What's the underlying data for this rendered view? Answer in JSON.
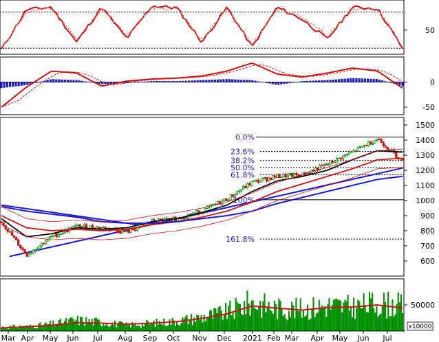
{
  "chart_data": [
    {
      "type": "line",
      "panel": "stochastic",
      "ylim": [
        10,
        100
      ],
      "y_ticks": [
        50
      ],
      "guide_levels": [
        80,
        20
      ],
      "x": [
        "Mar",
        "Apr",
        "May",
        "Jun",
        "Jul",
        "Aug",
        "Sep",
        "Oct",
        "Nov",
        "Dec",
        "2021",
        "Feb",
        "Mar",
        "Apr",
        "May",
        "Jun",
        "Jul"
      ],
      "series": [
        {
          "color": "#d01010",
          "values": [
            18,
            84,
            88,
            30,
            88,
            36,
            90,
            87,
            30,
            88,
            22,
            88,
            68,
            35,
            88,
            86,
            20
          ]
        },
        {
          "color": "#e07070",
          "values": [
            20,
            80,
            86,
            34,
            86,
            40,
            88,
            85,
            34,
            86,
            26,
            86,
            72,
            40,
            86,
            85,
            24
          ]
        }
      ]
    },
    {
      "type": "line",
      "panel": "macd",
      "ylim": [
        -65,
        50
      ],
      "y_ticks": [
        0,
        -50
      ],
      "x": [
        "Mar",
        "Apr",
        "May",
        "Jun",
        "Jul",
        "Aug",
        "Sep",
        "Oct",
        "Nov",
        "Dec",
        "2021",
        "Feb",
        "Mar",
        "Apr",
        "May",
        "Jun",
        "Jul"
      ],
      "series": [
        {
          "color": "#d01010",
          "values": [
            -50,
            -10,
            22,
            18,
            -8,
            2,
            6,
            8,
            12,
            22,
            38,
            16,
            10,
            18,
            28,
            22,
            -12
          ]
        },
        {
          "color": "#1a1ad6",
          "values": [
            -12,
            -6,
            6,
            4,
            -4,
            -2,
            2,
            2,
            4,
            6,
            4,
            -6,
            2,
            4,
            8,
            6,
            -8
          ]
        }
      ]
    },
    {
      "type": "line",
      "panel": "price",
      "ylim": [
        500,
        1550
      ],
      "y_ticks": [
        1500,
        1400,
        1300,
        1200,
        1100,
        1000,
        900,
        800,
        700,
        600
      ],
      "x": [
        "Mar",
        "Apr",
        "May",
        "Jun",
        "Jul",
        "Aug",
        "Sep",
        "Oct",
        "Nov",
        "Dec",
        "2021",
        "Feb",
        "Mar",
        "Apr",
        "May",
        "Jun",
        "Jul"
      ],
      "series": [
        {
          "color": "#009000",
          "values": [
            860,
            640,
            760,
            830,
            820,
            790,
            860,
            880,
            930,
            1010,
            1120,
            1160,
            1170,
            1240,
            1320,
            1410,
            1260
          ]
        },
        {
          "color": "#000000",
          "values": [
            880,
            760,
            780,
            820,
            810,
            820,
            860,
            880,
            920,
            970,
            1060,
            1130,
            1160,
            1200,
            1270,
            1330,
            1320
          ]
        },
        {
          "color": "#d01010",
          "values": [
            900,
            820,
            800,
            810,
            800,
            810,
            840,
            860,
            890,
            930,
            990,
            1060,
            1110,
            1160,
            1210,
            1270,
            1280
          ]
        },
        {
          "color": "#1a1ad6",
          "values": [
            960,
            930,
            910,
            890,
            860,
            850,
            850,
            860,
            880,
            900,
            930,
            980,
            1020,
            1060,
            1100,
            1140,
            1160
          ]
        }
      ],
      "fibonacci": [
        {
          "label": "0.0%",
          "value": 1420
        },
        {
          "label": "23.6%",
          "value": 1325
        },
        {
          "label": "38.2%",
          "value": 1265
        },
        {
          "label": "50.0%",
          "value": 1218
        },
        {
          "label": "61.8%",
          "value": 1170
        },
        {
          "label": "100%",
          "value": 1005
        },
        {
          "label": "161.8%",
          "value": 745
        }
      ]
    },
    {
      "type": "bar",
      "panel": "volume",
      "ylim": [
        0,
        100000
      ],
      "y_ticks": [
        50000
      ],
      "unit_label": "x10000",
      "x": [
        "Mar",
        "Apr",
        "May",
        "Jun",
        "Jul",
        "Aug",
        "Sep",
        "Oct",
        "Nov",
        "Dec",
        "2021",
        "Feb",
        "Mar",
        "Apr",
        "May",
        "Jun",
        "Jul"
      ],
      "series": [
        {
          "color": "#009000",
          "values": [
            8000,
            9000,
            14000,
            22000,
            18000,
            12000,
            16000,
            20000,
            28000,
            38000,
            58000,
            46000,
            44000,
            52000,
            48000,
            56000,
            50000
          ]
        },
        {
          "color": "#d01010",
          "values": [
            6000,
            8000,
            11000,
            16000,
            15000,
            13000,
            15000,
            18000,
            24000,
            33000,
            48000,
            44000,
            40000,
            45000,
            46000,
            50000,
            44000
          ]
        }
      ]
    }
  ]
}
